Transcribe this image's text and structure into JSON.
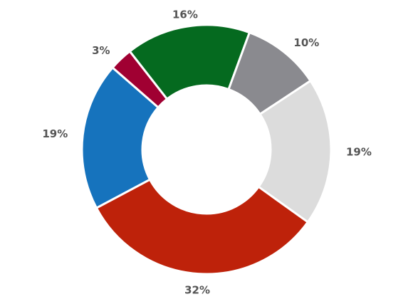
{
  "chart_data": {
    "type": "pie",
    "donut": true,
    "legend": "none",
    "slices": [
      {
        "label": "19%",
        "value": 19,
        "color": "#1673BD"
      },
      {
        "label": "3%",
        "value": 3,
        "color": "#A00032"
      },
      {
        "label": "16%",
        "value": 16,
        "color": "#056A1F"
      },
      {
        "label": "10%",
        "value": 10,
        "color": "#8A8A8F"
      },
      {
        "label": "19%",
        "value": 19,
        "color": "#DCDCDC"
      },
      {
        "label": "32%",
        "value": 32,
        "color": "#BE220A"
      }
    ]
  }
}
